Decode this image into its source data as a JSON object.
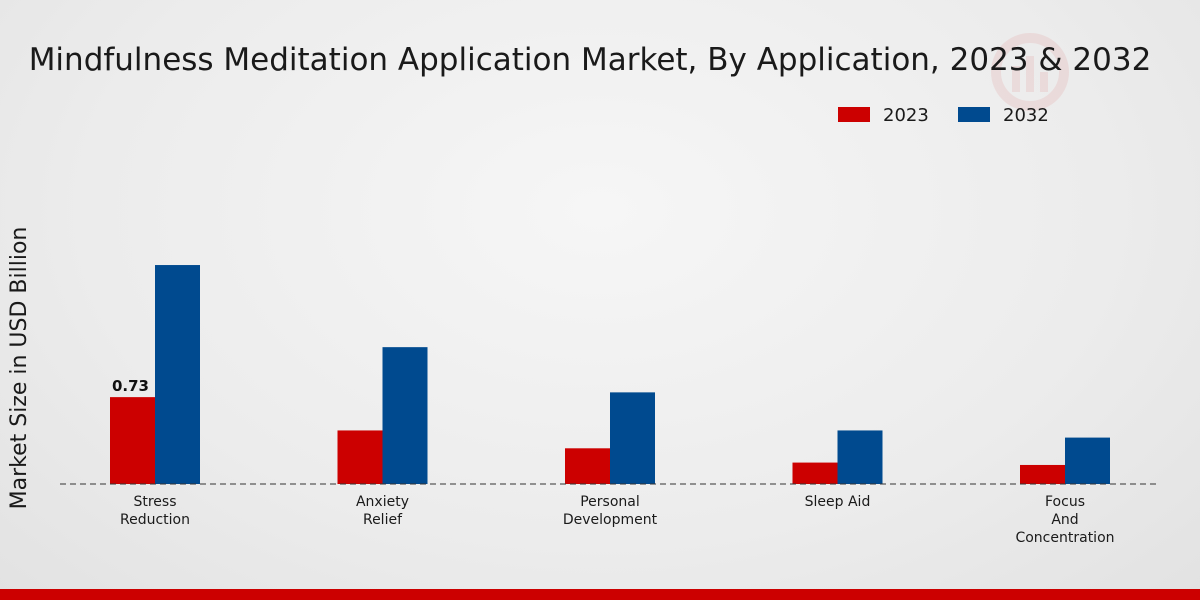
{
  "chart_data": {
    "type": "bar",
    "title": "Mindfulness Meditation Application Market, By Application, 2023 & 2032",
    "xlabel": "",
    "ylabel": "Market Size in USD Billion",
    "ylim": [
      0,
      2.2
    ],
    "categories": [
      [
        "Stress",
        "Reduction"
      ],
      [
        "Anxiety",
        "Relief"
      ],
      [
        "Personal",
        "Development"
      ],
      [
        "Sleep Aid"
      ],
      [
        "Focus",
        "And",
        "Concentration"
      ]
    ],
    "series": [
      {
        "name": "2023",
        "color": "#cc0000",
        "values": [
          0.73,
          0.45,
          0.3,
          0.18,
          0.16
        ]
      },
      {
        "name": "2032",
        "color": "#004a8f",
        "values": [
          1.84,
          1.15,
          0.77,
          0.45,
          0.39
        ]
      }
    ],
    "data_labels": [
      {
        "series": 0,
        "index": 0,
        "text": "0.73"
      }
    ],
    "legend_position": "top-right",
    "grid": false
  },
  "colors": {
    "accent_strip": "#cc0000"
  }
}
